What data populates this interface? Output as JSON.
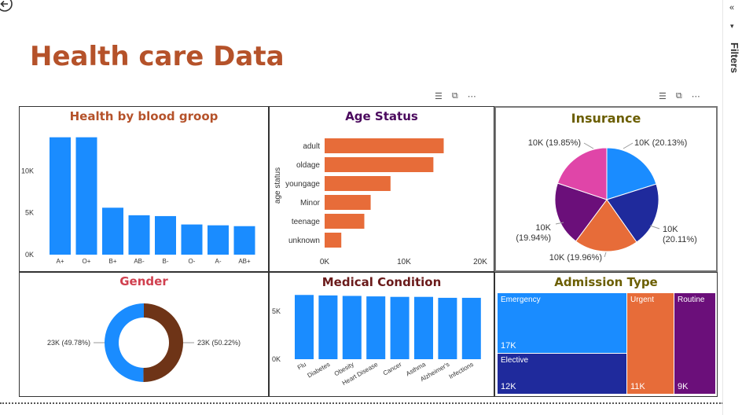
{
  "page_title": "Health care Data",
  "filters_label": "Filters",
  "colors": {
    "title": "#b5522a",
    "blue": "#1a8cff",
    "orange": "#e76c39",
    "navy": "#1f2a9c",
    "purple": "#6b0f7a",
    "pink": "#e045a8",
    "brown": "#6e3417"
  },
  "blood": {
    "title": "Health by blood groop",
    "chart_data": {
      "type": "bar",
      "categories": [
        "A+",
        "O+",
        "B+",
        "AB-",
        "B-",
        "O-",
        "A-",
        "AB+"
      ],
      "values": [
        14000,
        14000,
        5600,
        4700,
        4600,
        3600,
        3500,
        3400
      ],
      "yticks": [
        "0K",
        "5K",
        "10K"
      ],
      "ylim": [
        0,
        15000
      ]
    }
  },
  "age": {
    "title": "Age Status",
    "ylabel": "age status",
    "chart_data": {
      "type": "bar",
      "categories": [
        "adult",
        "oldage",
        "youngage",
        "Minor",
        "teenage",
        "unknown"
      ],
      "values": [
        15000,
        13700,
        8300,
        5800,
        5000,
        2100
      ],
      "xticks": [
        "0K",
        "10K",
        "20K"
      ],
      "xlim": [
        0,
        20000
      ]
    }
  },
  "insurance": {
    "title": "Insurance",
    "chart_data": {
      "type": "pie",
      "labels": [
        "10K (20.13%)",
        "10K (20.11%)",
        "10K (19.96%)",
        "10K (19.94%)",
        "10K (19.85%)"
      ],
      "values": [
        20.13,
        20.11,
        19.96,
        19.94,
        19.85
      ]
    }
  },
  "gender": {
    "title": "Gender",
    "chart_data": {
      "type": "pie",
      "labels": [
        "23K (50.22%)",
        "23K (49.78%)"
      ],
      "values": [
        50.22,
        49.78
      ]
    }
  },
  "medical": {
    "title": "Medical Condition",
    "chart_data": {
      "type": "bar",
      "categories": [
        "Flu",
        "Diabetes",
        "Obesity",
        "Heart Disease",
        "Cancer",
        "Asthma",
        "Alzheimer's",
        "Infections"
      ],
      "values": [
        6700,
        6650,
        6600,
        6550,
        6500,
        6500,
        6400,
        6400
      ],
      "yticks": [
        "0K",
        "5K"
      ],
      "ylim": [
        0,
        8500
      ]
    }
  },
  "admission": {
    "title": "Admission Type",
    "items": [
      {
        "label": "Emergency",
        "value": "17K"
      },
      {
        "label": "Elective",
        "value": "12K"
      },
      {
        "label": "Urgent",
        "value": "11K"
      },
      {
        "label": "Routine",
        "value": "9K"
      }
    ]
  }
}
